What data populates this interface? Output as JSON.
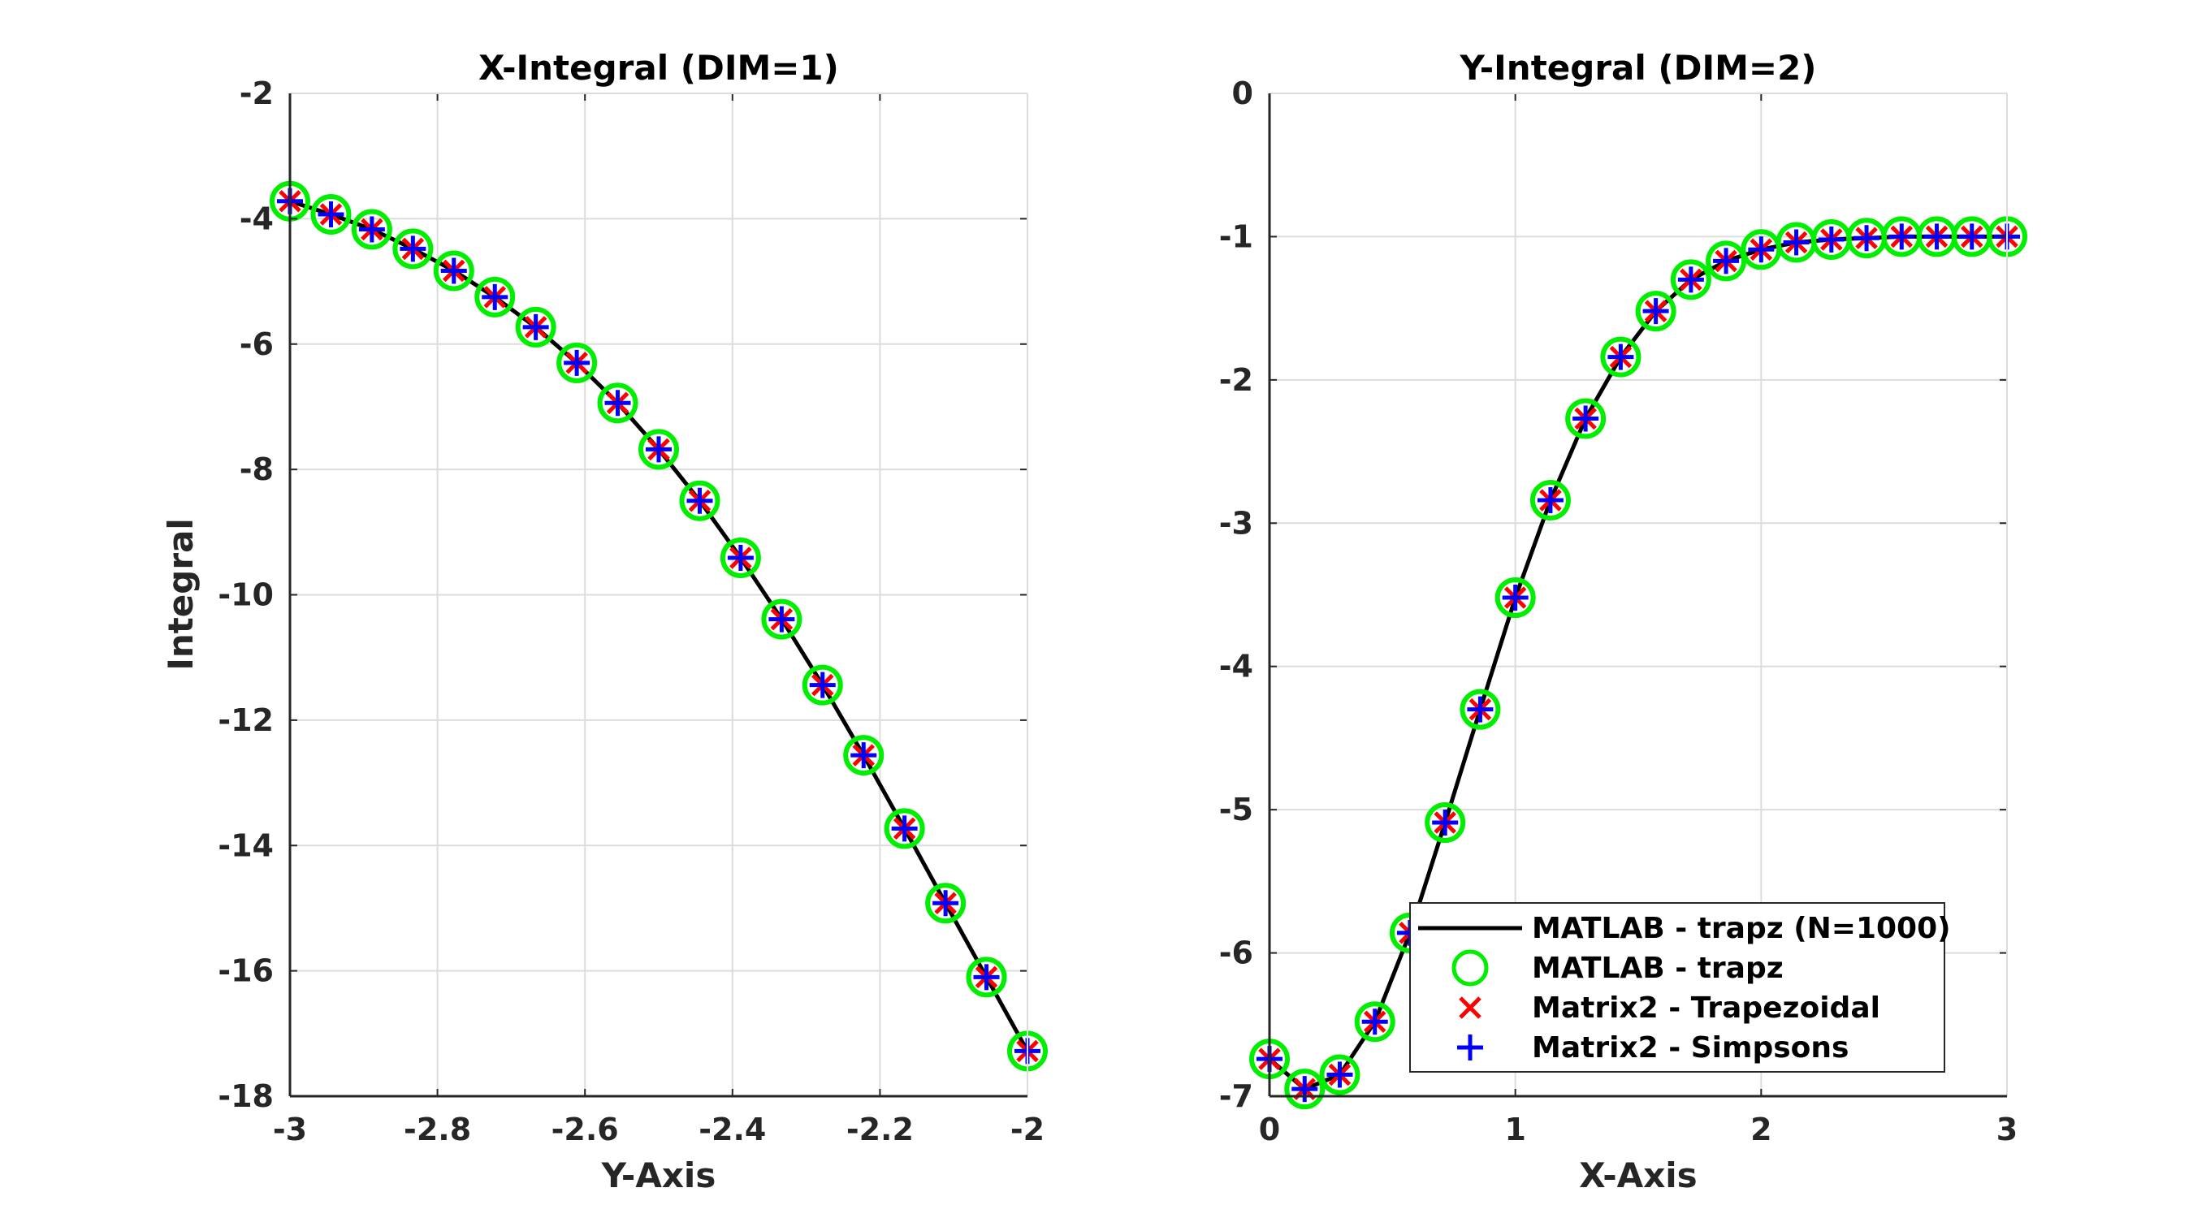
{
  "colors": {
    "line": "#000000",
    "circle": "#00ee00",
    "x_marker": "#ff0000",
    "plus_marker": "#0000ff",
    "grid": "#dcdcdc",
    "axis": "#262626"
  },
  "legend": {
    "placement": "lower-right of right panel",
    "entries": [
      {
        "label": "MATLAB - trapz (N=1000)",
        "marker": "line"
      },
      {
        "label": "MATLAB - trapz",
        "marker": "circle"
      },
      {
        "label": "Matrix2 - Trapezoidal",
        "marker": "x"
      },
      {
        "label": "Matrix2 - Simpsons",
        "marker": "plus"
      }
    ]
  },
  "chart_data": [
    {
      "type": "line",
      "title": "X-Integral (DIM=1)",
      "xlabel": "Y-Axis",
      "ylabel": "Integral",
      "xlim": [
        -3,
        -2
      ],
      "ylim": [
        -18,
        -2
      ],
      "xticks": [
        -3,
        -2.8,
        -2.6,
        -2.4,
        -2.2,
        -2
      ],
      "xtick_labels": [
        "-3",
        "-2.8",
        "-2.6",
        "-2.4",
        "-2.2",
        "-2"
      ],
      "yticks": [
        -18,
        -16,
        -14,
        -12,
        -10,
        -8,
        -6,
        -4,
        -2
      ],
      "ytick_labels": [
        "-18",
        "-16",
        "-14",
        "-12",
        "-10",
        "-8",
        "-6",
        "-4",
        "-2"
      ],
      "grid": true,
      "x": [
        -3.0,
        -2.9444,
        -2.8889,
        -2.8333,
        -2.7778,
        -2.7222,
        -2.6667,
        -2.6111,
        -2.5556,
        -2.5,
        -2.4444,
        -2.3889,
        -2.3333,
        -2.2778,
        -2.2222,
        -2.1667,
        -2.1111,
        -2.0556,
        -2.0
      ],
      "series": [
        {
          "name": "MATLAB - trapz (N=1000)",
          "style": "line",
          "values": [
            -3.72,
            -3.93,
            -4.17,
            -4.48,
            -4.83,
            -5.25,
            -5.73,
            -6.3,
            -6.94,
            -7.68,
            -8.5,
            -9.41,
            -10.39,
            -11.44,
            -12.56,
            -13.73,
            -14.92,
            -16.1,
            -17.28
          ]
        },
        {
          "name": "MATLAB - trapz",
          "style": "circle",
          "values": [
            -3.72,
            -3.93,
            -4.17,
            -4.48,
            -4.83,
            -5.25,
            -5.73,
            -6.3,
            -6.94,
            -7.68,
            -8.5,
            -9.41,
            -10.39,
            -11.44,
            -12.56,
            -13.73,
            -14.92,
            -16.1,
            -17.28
          ]
        },
        {
          "name": "Matrix2 - Trapezoidal",
          "style": "x",
          "values": [
            -3.72,
            -3.93,
            -4.17,
            -4.48,
            -4.83,
            -5.25,
            -5.73,
            -6.3,
            -6.94,
            -7.68,
            -8.5,
            -9.41,
            -10.39,
            -11.44,
            -12.56,
            -13.73,
            -14.92,
            -16.1,
            -17.28
          ]
        },
        {
          "name": "Matrix2 - Simpsons",
          "style": "plus",
          "values": [
            -3.72,
            -3.93,
            -4.17,
            -4.48,
            -4.83,
            -5.25,
            -5.73,
            -6.3,
            -6.94,
            -7.68,
            -8.5,
            -9.41,
            -10.39,
            -11.44,
            -12.56,
            -13.73,
            -14.92,
            -16.1,
            -17.28
          ]
        }
      ]
    },
    {
      "type": "line",
      "title": "Y-Integral (DIM=2)",
      "xlabel": "X-Axis",
      "ylabel": "",
      "xlim": [
        0,
        3
      ],
      "ylim": [
        -7,
        0
      ],
      "xticks": [
        0,
        1,
        2,
        3
      ],
      "xtick_labels": [
        "0",
        "1",
        "2",
        "3"
      ],
      "yticks": [
        -7,
        -6,
        -5,
        -4,
        -3,
        -2,
        -1,
        0
      ],
      "ytick_labels": [
        "-7",
        "-6",
        "-5",
        "-4",
        "-3",
        "-2",
        "-1",
        "0"
      ],
      "grid": true,
      "x": [
        0.0,
        0.1429,
        0.2857,
        0.4286,
        0.5714,
        0.7143,
        0.8571,
        1.0,
        1.1429,
        1.2857,
        1.4286,
        1.5714,
        1.7143,
        1.8571,
        2.0,
        2.1429,
        2.2857,
        2.4286,
        2.5714,
        2.7143,
        2.8571,
        3.0
      ],
      "series": [
        {
          "name": "MATLAB - trapz (N=1000)",
          "style": "line",
          "values": [
            -6.74,
            -6.95,
            -6.85,
            -6.48,
            -5.86,
            -5.09,
            -4.3,
            -3.52,
            -2.84,
            -2.27,
            -1.84,
            -1.52,
            -1.3,
            -1.17,
            -1.09,
            -1.04,
            -1.02,
            -1.01,
            -1.0,
            -1.0,
            -1.0,
            -1.0
          ]
        },
        {
          "name": "MATLAB - trapz",
          "style": "circle",
          "values": [
            -6.74,
            -6.95,
            -6.85,
            -6.48,
            -5.86,
            -5.09,
            -4.3,
            -3.52,
            -2.84,
            -2.27,
            -1.84,
            -1.52,
            -1.3,
            -1.17,
            -1.09,
            -1.04,
            -1.02,
            -1.01,
            -1.0,
            -1.0,
            -1.0,
            -1.0
          ]
        },
        {
          "name": "Matrix2 - Trapezoidal",
          "style": "x",
          "values": [
            -6.74,
            -6.95,
            -6.85,
            -6.48,
            -5.86,
            -5.09,
            -4.3,
            -3.52,
            -2.84,
            -2.27,
            -1.84,
            -1.52,
            -1.3,
            -1.17,
            -1.09,
            -1.04,
            -1.02,
            -1.01,
            -1.0,
            -1.0,
            -1.0,
            -1.0
          ]
        },
        {
          "name": "Matrix2 - Simpsons",
          "style": "plus",
          "values": [
            -6.74,
            -6.95,
            -6.85,
            -6.48,
            -5.86,
            -5.09,
            -4.3,
            -3.52,
            -2.84,
            -2.27,
            -1.84,
            -1.52,
            -1.3,
            -1.17,
            -1.09,
            -1.04,
            -1.02,
            -1.01,
            -1.0,
            -1.0,
            -1.0,
            -1.0
          ]
        }
      ]
    }
  ]
}
